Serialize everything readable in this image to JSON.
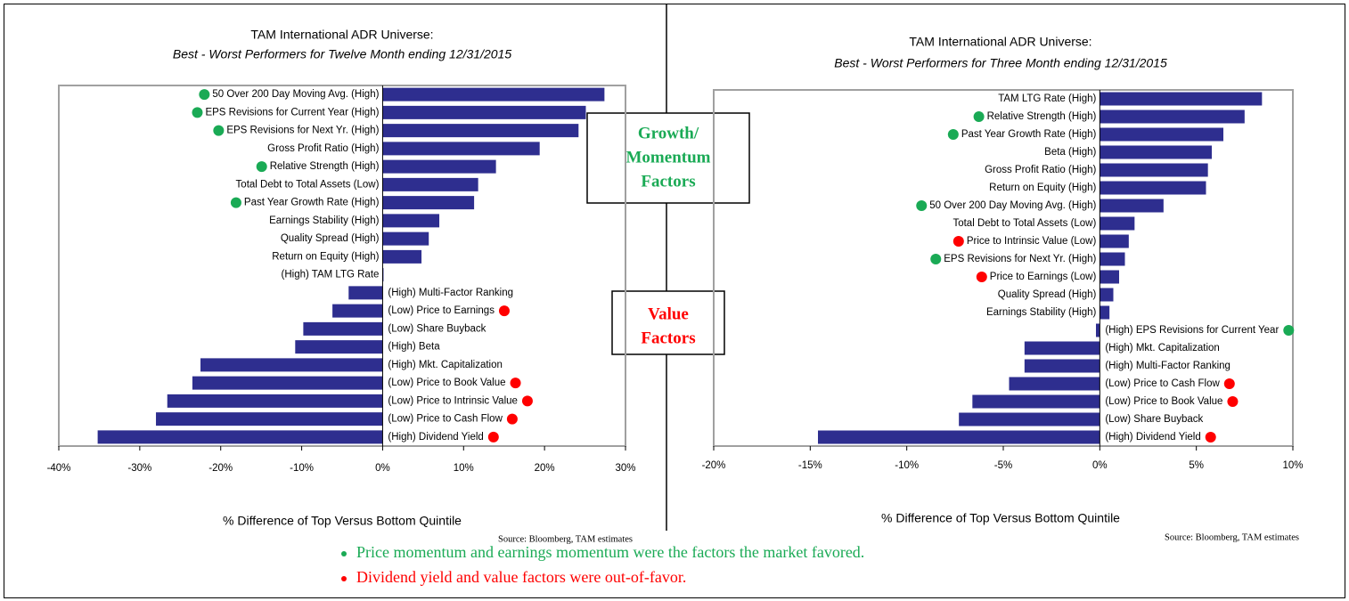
{
  "chart_data": [
    {
      "type": "barh",
      "title": "TAM International ADR Universe:",
      "subtitle": "Best - Worst Performers for Twelve Month ending 12/31/2015",
      "xlabel": "% Difference of Top Versus Bottom Quintile",
      "source": "Source:  Bloomberg, TAM estimates",
      "color": "#2e2e8f",
      "categories": [
        "50 Over 200 Day Moving Avg. (High)",
        "EPS Revisions for Current Year (High)",
        "EPS Revisions for Next Yr. (High)",
        "Gross Profit Ratio (High)",
        "Relative Strength (High)",
        "Total Debt to Total Assets (Low)",
        "Past Year Growth Rate (High)",
        "Earnings Stability (High)",
        "Quality Spread (High)",
        "Return on Equity (High)",
        "(High) TAM LTG Rate",
        "(High) Multi-Factor Ranking",
        "(Low) Price to Earnings",
        "(Low) Share Buyback",
        "(High) Beta",
        "(High) Mkt. Capitalization",
        "(Low) Price to Book Value",
        "(Low) Price to Intrinsic Value",
        "(Low) Price to Cash Flow",
        "(High) Dividend Yield"
      ],
      "values": [
        27.4,
        25.1,
        24.2,
        19.4,
        14.0,
        11.8,
        11.3,
        7.0,
        5.7,
        4.8,
        0.1,
        -4.2,
        -6.2,
        -9.8,
        -10.8,
        -22.5,
        -23.5,
        -26.6,
        -28.0,
        -35.2
      ],
      "markers": [
        "#1aaa55",
        "#1aaa55",
        "#1aaa55",
        null,
        "#1aaa55",
        null,
        "#1aaa55",
        null,
        null,
        null,
        null,
        null,
        "#ff0000",
        null,
        null,
        null,
        "#ff0000",
        "#ff0000",
        "#ff0000",
        "#ff0000"
      ],
      "xlim": [
        -40,
        30
      ],
      "xticks": [
        {
          "value": -40,
          "label": "-40%"
        },
        {
          "value": -30,
          "label": "-30%"
        },
        {
          "value": -20,
          "label": "-20%"
        },
        {
          "value": -10,
          "label": "-10%"
        },
        {
          "value": 0,
          "label": "0%"
        },
        {
          "value": 10,
          "label": "10%"
        },
        {
          "value": 20,
          "label": "20%"
        },
        {
          "value": 30,
          "label": "30%"
        }
      ]
    },
    {
      "type": "barh",
      "title": "TAM International ADR Universe:",
      "subtitle": "Best - Worst Performers for Three Month ending 12/31/2015",
      "xlabel": "% Difference of Top Versus Bottom Quintile",
      "source": "Source:  Bloomberg, TAM estimates",
      "color": "#2e2e8f",
      "categories": [
        "TAM LTG Rate (High)",
        "Relative Strength (High)",
        "Past Year Growth Rate (High)",
        "Beta (High)",
        "Gross Profit Ratio (High)",
        "Return on Equity (High)",
        "50 Over 200 Day Moving Avg. (High)",
        "Total Debt to Total Assets (Low)",
        "Price to Intrinsic Value (Low)",
        "EPS Revisions for Next Yr. (High)",
        "Price to Earnings (Low)",
        "Quality Spread (High)",
        "Earnings Stability (High)",
        "(High) EPS Revisions for Current Year",
        "(High) Mkt. Capitalization",
        "(High) Multi-Factor Ranking",
        "(Low) Price to Cash Flow",
        "(Low) Price to Book Value",
        "(Low) Share Buyback",
        "(High) Dividend Yield"
      ],
      "values": [
        8.4,
        7.5,
        6.4,
        5.8,
        5.6,
        5.5,
        3.3,
        1.8,
        1.5,
        1.3,
        1.0,
        0.7,
        0.5,
        -0.2,
        -3.9,
        -3.9,
        -4.7,
        -6.6,
        -7.3,
        -14.6
      ],
      "markers": [
        null,
        "#1aaa55",
        "#1aaa55",
        null,
        null,
        null,
        "#1aaa55",
        null,
        "#ff0000",
        "#1aaa55",
        "#ff0000",
        null,
        null,
        "#1aaa55",
        null,
        null,
        "#ff0000",
        "#ff0000",
        null,
        "#ff0000"
      ],
      "xlim": [
        -20,
        10
      ],
      "xticks": [
        {
          "value": -20,
          "label": "-20%"
        },
        {
          "value": -15,
          "label": "-15%"
        },
        {
          "value": -10,
          "label": "-10%"
        },
        {
          "value": -5,
          "label": "-5%"
        },
        {
          "value": 0,
          "label": "0%"
        },
        {
          "value": 5,
          "label": "5%"
        },
        {
          "value": 10,
          "label": "10%"
        }
      ]
    }
  ],
  "annotations": {
    "growth": [
      "Growth/",
      "Momentum",
      "Factors"
    ],
    "value": [
      "Value",
      "Factors"
    ]
  },
  "notes": [
    {
      "text": "Price momentum and earnings momentum were the factors the market favored.",
      "color": "#1aaa55"
    },
    {
      "text": "Dividend yield and value factors were out-of-favor.",
      "color": "#ff0000"
    }
  ]
}
